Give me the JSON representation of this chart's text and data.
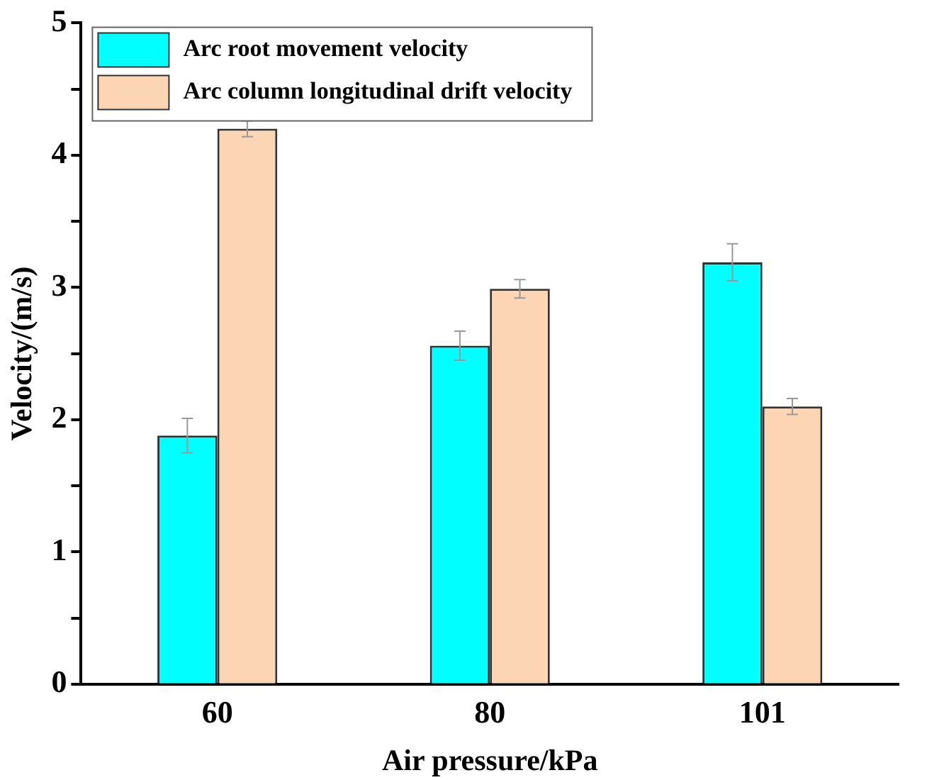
{
  "chart_data": {
    "type": "bar",
    "xlabel": "Air pressure/kPa",
    "ylabel": "Velocity/(m/s)",
    "categories": [
      "60",
      "80",
      "101"
    ],
    "series": [
      {
        "name": "Arc root movement velocity",
        "color": "#00ffff",
        "values": [
          1.88,
          2.56,
          3.19
        ],
        "errors": [
          0.13,
          0.11,
          0.14
        ]
      },
      {
        "name": "Arc column longitudinal drift velocity",
        "color": "#fcd5b5",
        "values": [
          4.2,
          2.99,
          2.1
        ],
        "errors": [
          0.06,
          0.07,
          0.06
        ]
      }
    ],
    "ylim": [
      0,
      5
    ],
    "yticks": [
      0,
      {
        "value": 0.5,
        "label": null
      },
      1,
      {
        "value": 1.5,
        "label": null
      },
      2,
      {
        "value": 2.5,
        "label": null
      },
      3,
      {
        "value": 3.5,
        "label": null
      },
      4,
      {
        "value": 4.5,
        "label": null
      },
      5
    ],
    "legend": "top left",
    "grid": false
  }
}
